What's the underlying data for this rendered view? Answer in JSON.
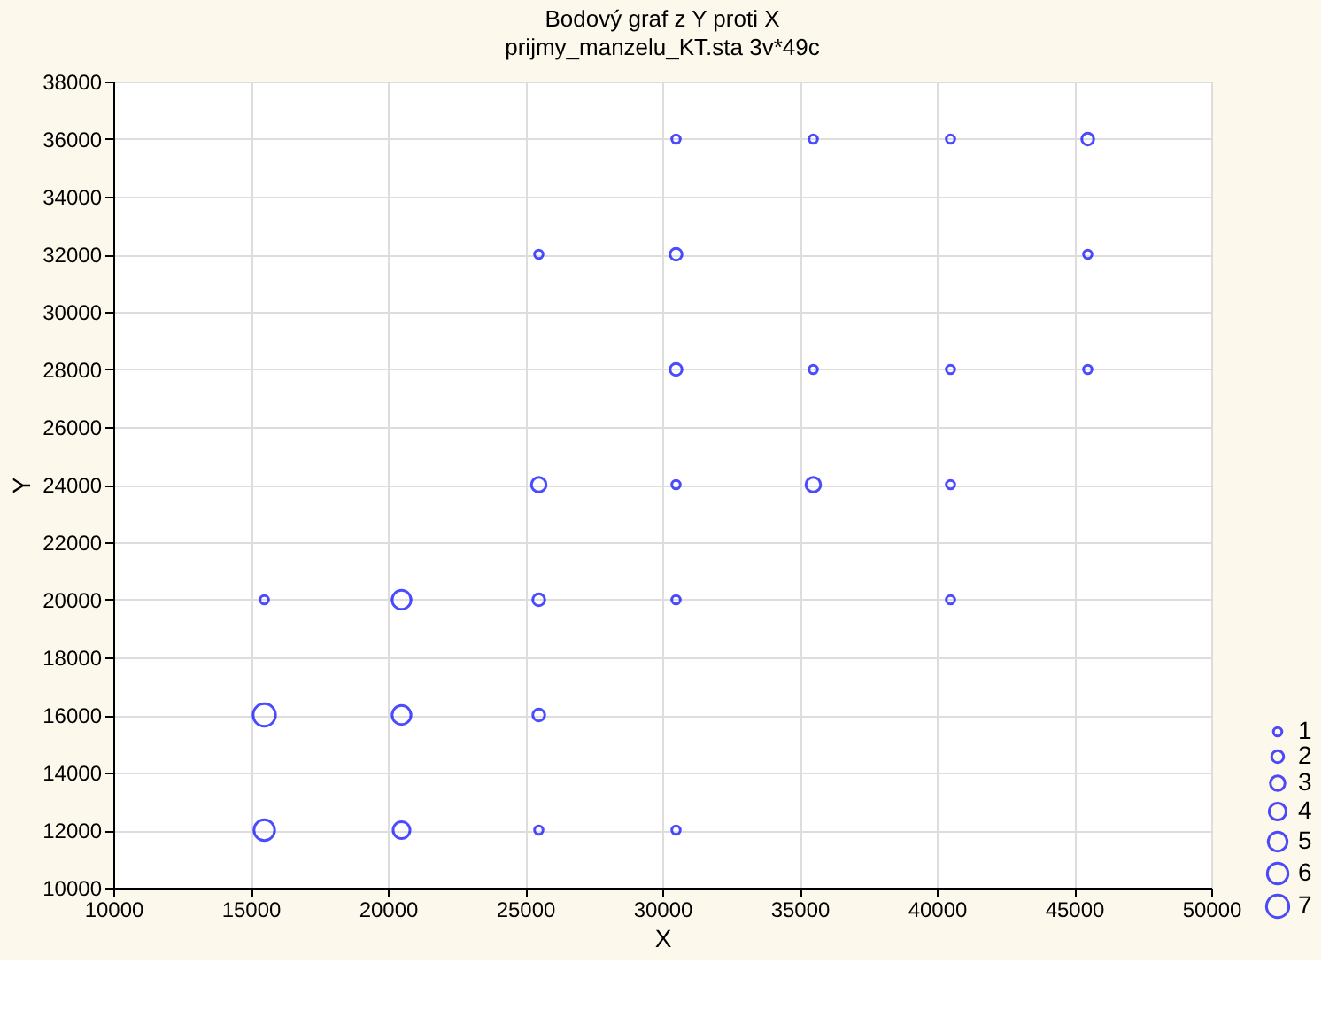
{
  "chart_data": {
    "type": "bubble",
    "title": "Bodový graf z Y proti X",
    "subtitle": "prijmy_manzelu_KT.sta 3v*49c",
    "xlabel": "X",
    "ylabel": "Y",
    "xlim": [
      10000,
      50000
    ],
    "xticks": [
      10000,
      15000,
      20000,
      25000,
      30000,
      35000,
      40000,
      45000,
      50000
    ],
    "ylim": [
      10000,
      38000
    ],
    "yticks": [
      10000,
      12000,
      14000,
      16000,
      18000,
      20000,
      22000,
      24000,
      26000,
      28000,
      30000,
      32000,
      34000,
      36000,
      38000
    ],
    "grid": true,
    "marker": "circle",
    "size_legend": [
      1,
      2,
      3,
      4,
      5,
      6,
      7
    ],
    "series": [
      {
        "color": "#0000ff",
        "x": [
          15500,
          15500,
          15500,
          20500,
          20500,
          20500,
          25500,
          25500,
          25500,
          25500,
          25500,
          30500,
          30500,
          30500,
          30500,
          30500,
          30500,
          35500,
          35500,
          35500,
          40500,
          40500,
          40500,
          40500,
          45500,
          45500,
          45500
        ],
        "values": [
          20000,
          16000,
          12000,
          20000,
          16000,
          12000,
          32000,
          24000,
          20000,
          16000,
          12000,
          36000,
          32000,
          28000,
          24000,
          20000,
          12000,
          36000,
          28000,
          24000,
          36000,
          28000,
          24000,
          20000,
          36000,
          32000,
          28000
        ],
        "sizes": [
          1,
          7,
          6,
          5,
          5,
          4,
          1,
          3,
          2,
          2,
          1,
          1,
          2,
          2,
          1,
          1,
          1,
          1,
          1,
          3,
          1,
          1,
          1,
          1,
          2,
          1,
          1
        ]
      }
    ]
  }
}
